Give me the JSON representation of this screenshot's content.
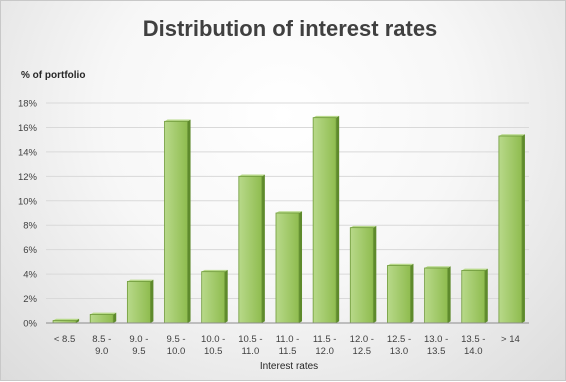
{
  "colors": {
    "bar_fill_light": "#b8d98a",
    "bar_fill_dark": "#8fbc4f",
    "bar_stroke": "#6f9a3a",
    "bar_side": "#5e8a2c"
  },
  "chart_data": {
    "type": "bar",
    "title": "Distribution of interest rates",
    "ylabel": "% of portfolio",
    "xlabel": "Interest rates",
    "categories": [
      [
        "< 8.5"
      ],
      [
        "8.5 -",
        "9.0"
      ],
      [
        "9.0 -",
        "9.5"
      ],
      [
        "9.5 -",
        "10.0"
      ],
      [
        "10.0 -",
        "10.5"
      ],
      [
        "10.5 -",
        "11.0"
      ],
      [
        "11.0 -",
        "11.5"
      ],
      [
        "11.5 -",
        "12.0"
      ],
      [
        "12.0 -",
        "12.5"
      ],
      [
        "12.5 -",
        "13.0"
      ],
      [
        "13.0 -",
        "13.5"
      ],
      [
        "13.5 -",
        "14.0"
      ],
      [
        "> 14"
      ]
    ],
    "values": [
      0.2,
      0.7,
      3.4,
      16.5,
      4.2,
      12.0,
      9.0,
      16.8,
      7.8,
      4.7,
      4.5,
      4.3,
      15.3
    ],
    "yticks": [
      "0%",
      "2%",
      "4%",
      "6%",
      "8%",
      "10%",
      "12%",
      "14%",
      "16%",
      "18%"
    ],
    "ylim": [
      0,
      18
    ],
    "grid": true,
    "legend": "none"
  }
}
